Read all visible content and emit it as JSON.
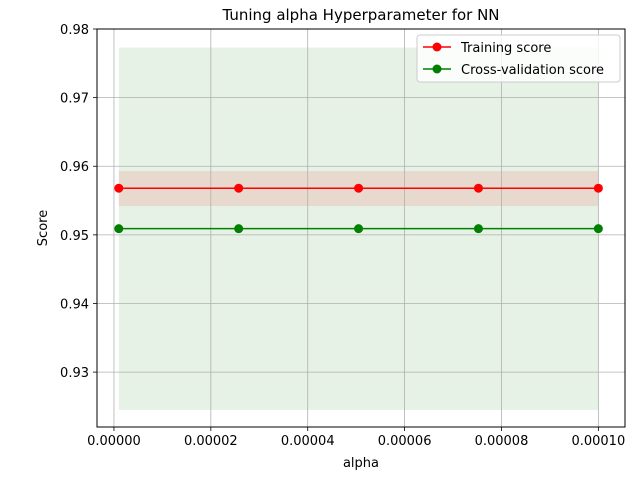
{
  "chart_data": {
    "type": "line",
    "title": "Tuning alpha Hyperparameter for NN",
    "xlabel": "alpha",
    "ylabel": "Score",
    "x": [
      1e-06,
      2.575e-05,
      5.05e-05,
      7.525e-05,
      0.0001
    ],
    "xlim": [
      -3.5e-06,
      0.0001055
    ],
    "ylim": [
      0.922,
      0.98
    ],
    "xticks": [
      0.0,
      2e-05,
      4e-05,
      6e-05,
      8e-05,
      0.0001
    ],
    "xtick_labels": [
      "0.00000",
      "0.00002",
      "0.00004",
      "0.00006",
      "0.00008",
      "0.00010"
    ],
    "yticks": [
      0.93,
      0.94,
      0.95,
      0.96,
      0.97,
      0.98
    ],
    "ytick_labels": [
      "0.93",
      "0.94",
      "0.95",
      "0.96",
      "0.97",
      "0.98"
    ],
    "grid": true,
    "legend_position": "top-right",
    "series": [
      {
        "name": "Training score",
        "color": "#ff0000",
        "marker": "circle",
        "values": [
          0.9568,
          0.9568,
          0.9568,
          0.9568,
          0.9568
        ],
        "band": {
          "lower": 0.9542,
          "upper": 0.9593,
          "color": "#ff0000",
          "opacity": 0.1
        }
      },
      {
        "name": "Cross-validation score",
        "color": "#008000",
        "marker": "circle",
        "values": [
          0.9509,
          0.9509,
          0.9509,
          0.9509,
          0.9509
        ],
        "band": {
          "lower": 0.9245,
          "upper": 0.9773,
          "color": "#008000",
          "opacity": 0.1
        }
      }
    ]
  }
}
